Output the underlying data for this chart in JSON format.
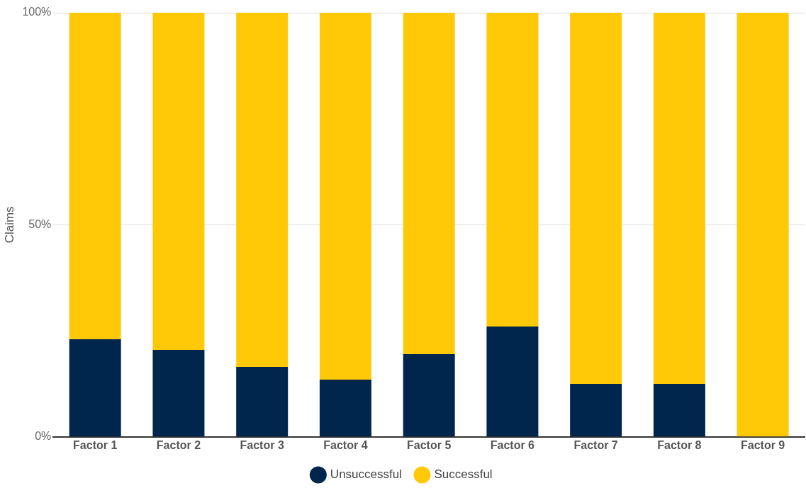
{
  "chart_data": {
    "type": "bar",
    "stacked": true,
    "ylabel": "Claims",
    "categories": [
      "Factor 1",
      "Factor 2",
      "Factor 3",
      "Factor 4",
      "Factor 5",
      "Factor 6",
      "Factor 7",
      "Factor 8",
      "Factor 9"
    ],
    "series": [
      {
        "name": "Unsuccessful",
        "color": "#00264d",
        "values": [
          23,
          20.5,
          16.5,
          13.5,
          19.5,
          26,
          12.5,
          12.5,
          0
        ]
      },
      {
        "name": "Successful",
        "color": "#ffc907",
        "values": [
          77,
          79.5,
          83.5,
          86.5,
          80.5,
          74,
          87.5,
          87.5,
          100
        ]
      }
    ],
    "ylim": [
      0,
      100
    ],
    "yticks": [
      {
        "value": 0,
        "label": "0%"
      },
      {
        "value": 50,
        "label": "50%"
      },
      {
        "value": 100,
        "label": "100%"
      }
    ],
    "grid": "y",
    "legend": "bottom"
  }
}
